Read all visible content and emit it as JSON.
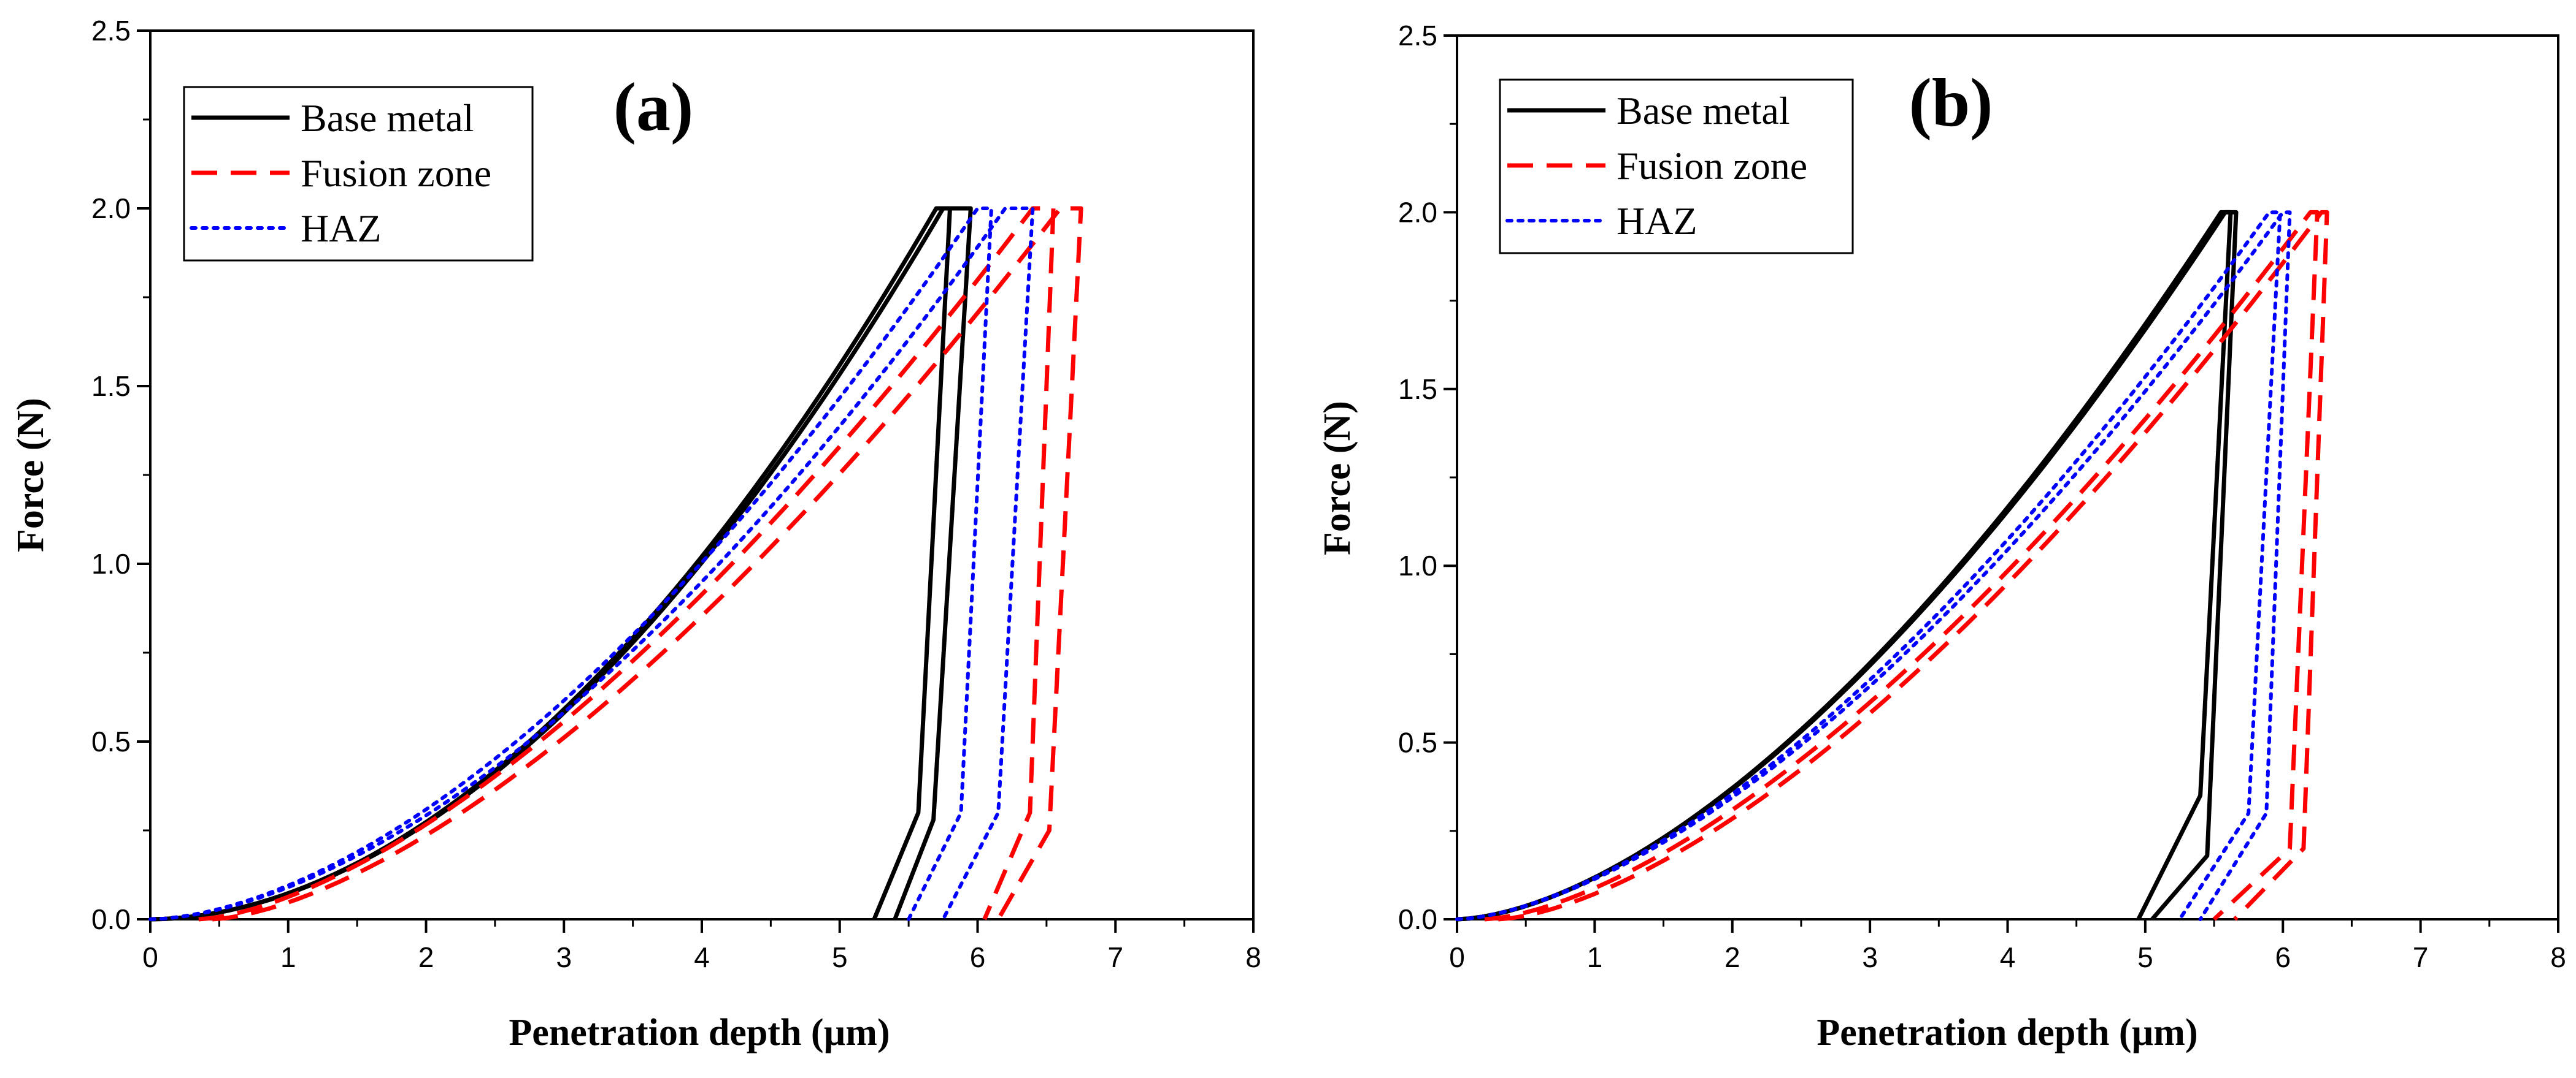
{
  "chart_data": [
    {
      "type": "line",
      "panel_label": "(a)",
      "xlabel": "Penetration depth (µm)",
      "ylabel": "Force (N)",
      "xlim": [
        0,
        8
      ],
      "ylim": [
        0,
        2.5
      ],
      "xticks": [
        "0",
        "1",
        "2",
        "3",
        "4",
        "5",
        "6",
        "7",
        "8"
      ],
      "yticks": [
        "0.0",
        "0.5",
        "1.0",
        "1.5",
        "2.0",
        "2.5"
      ],
      "legend": {
        "placement": "top-left",
        "entries": [
          {
            "label": "Base metal",
            "color": "#000000",
            "dash": "solid"
          },
          {
            "label": "Fusion zone",
            "color": "#ff0000",
            "dash": "dashed"
          },
          {
            "label": "HAZ",
            "color": "#0000ff",
            "dash": "dotted"
          }
        ]
      },
      "series": [
        {
          "name": "Base metal",
          "color": "#000000",
          "dash": "solid",
          "curves": [
            {
              "load_end": 5.7,
              "maxload": 2.0,
              "hold_end": 5.8,
              "kink": [
                5.57,
                0.3
              ],
              "unload_end": 5.25,
              "p": 1.9
            },
            {
              "load_end": 5.75,
              "maxload": 2.0,
              "hold_end": 5.95,
              "kink": [
                5.68,
                0.28
              ],
              "unload_end": 5.4,
              "p": 1.9
            }
          ]
        },
        {
          "name": "Fusion zone",
          "color": "#ff0000",
          "dash": "dashed",
          "curves": [
            {
              "load_end": 6.4,
              "maxload": 2.0,
              "hold_end": 6.55,
              "kink": [
                6.38,
                0.3
              ],
              "unload_end": 6.05,
              "p": 1.55,
              "load_start": 0.35
            },
            {
              "load_end": 6.6,
              "maxload": 2.0,
              "hold_end": 6.75,
              "kink": [
                6.52,
                0.25
              ],
              "unload_end": 6.15,
              "p": 1.55,
              "load_start": 0.45
            }
          ]
        },
        {
          "name": "HAZ",
          "color": "#0000ff",
          "dash": "dotted",
          "curves": [
            {
              "load_end": 6.0,
              "maxload": 2.0,
              "hold_end": 6.1,
              "kink": [
                5.88,
                0.3
              ],
              "unload_end": 5.5,
              "p": 1.7
            },
            {
              "load_end": 6.2,
              "maxload": 2.0,
              "hold_end": 6.4,
              "kink": [
                6.15,
                0.3
              ],
              "unload_end": 5.75,
              "p": 1.7
            }
          ]
        }
      ]
    },
    {
      "type": "line",
      "panel_label": "(b)",
      "xlabel": "Penetration depth (µm)",
      "ylabel": "Force (N)",
      "xlim": [
        0,
        8
      ],
      "ylim": [
        0,
        2.5
      ],
      "xticks": [
        "0",
        "1",
        "2",
        "3",
        "4",
        "5",
        "6",
        "7",
        "8"
      ],
      "yticks": [
        "0.0",
        "0.5",
        "1.0",
        "1.5",
        "2.0",
        "2.5"
      ],
      "legend": {
        "placement": "top-left",
        "entries": [
          {
            "label": "Base metal",
            "color": "#000000",
            "dash": "solid"
          },
          {
            "label": "Fusion zone",
            "color": "#ff0000",
            "dash": "dashed"
          },
          {
            "label": "HAZ",
            "color": "#0000ff",
            "dash": "dotted"
          }
        ]
      },
      "series": [
        {
          "name": "Base metal",
          "color": "#000000",
          "dash": "solid",
          "curves": [
            {
              "load_end": 5.55,
              "maxload": 2.0,
              "hold_end": 5.62,
              "kink": [
                5.4,
                0.35
              ],
              "unload_end": 4.95,
              "p": 1.65
            },
            {
              "load_end": 5.58,
              "maxload": 2.0,
              "hold_end": 5.66,
              "kink": [
                5.45,
                0.18
              ],
              "unload_end": 5.05,
              "p": 1.65
            }
          ]
        },
        {
          "name": "Fusion zone",
          "color": "#ff0000",
          "dash": "dashed",
          "curves": [
            {
              "load_end": 6.2,
              "maxload": 2.0,
              "hold_end": 6.25,
              "kink": [
                6.05,
                0.2
              ],
              "unload_end": 5.5,
              "p": 1.55,
              "load_start": 0.2
            },
            {
              "load_end": 6.28,
              "maxload": 2.0,
              "hold_end": 6.32,
              "kink": [
                6.15,
                0.2
              ],
              "unload_end": 5.65,
              "p": 1.55,
              "load_start": 0.3
            }
          ]
        },
        {
          "name": "HAZ",
          "color": "#0000ff",
          "dash": "dotted",
          "curves": [
            {
              "load_end": 5.9,
              "maxload": 2.0,
              "hold_end": 5.98,
              "kink": [
                5.75,
                0.3
              ],
              "unload_end": 5.25,
              "p": 1.6
            },
            {
              "load_end": 6.0,
              "maxload": 2.0,
              "hold_end": 6.05,
              "kink": [
                5.88,
                0.3
              ],
              "unload_end": 5.4,
              "p": 1.6
            }
          ]
        }
      ]
    }
  ]
}
